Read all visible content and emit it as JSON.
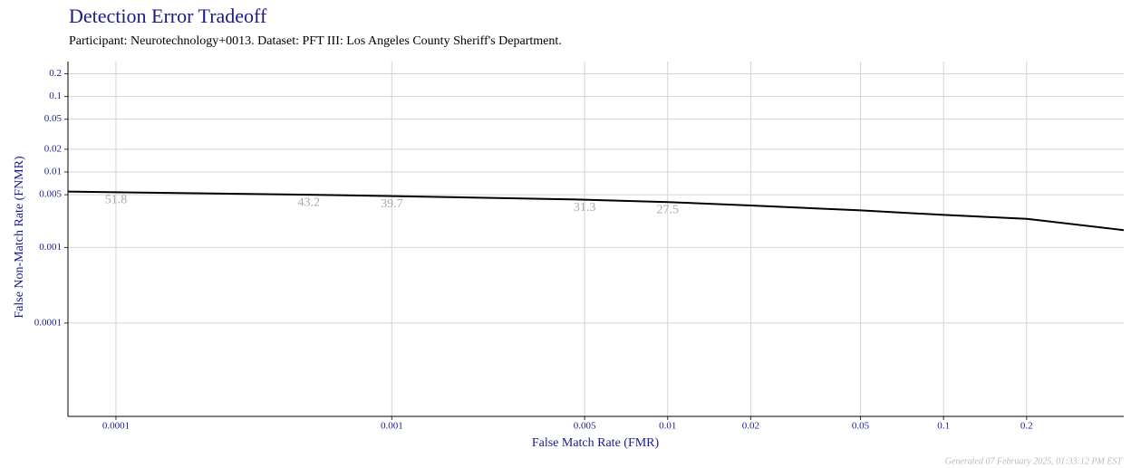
{
  "chart_data": {
    "type": "line",
    "title": "Detection Error Tradeoff",
    "subtitle": "Participant: Neurotechnology+0013. Dataset: PFT III: Los Angeles County Sheriff's Department.",
    "x_label": "False Match Rate (FMR)",
    "y_label": "False Non-Match Rate (FNMR)",
    "footer": "Generated 07 February 2025, 01:33:12 PM EST",
    "log_x": true,
    "log_y": true,
    "grid": true,
    "xlim": [
      6.7e-05,
      0.45
    ],
    "ylim": [
      5.8e-06,
      0.29
    ],
    "xticks": [
      0.0001,
      0.001,
      0.005,
      0.01,
      0.02,
      0.05,
      0.1,
      0.2
    ],
    "yticks": [
      0.0001,
      0.001,
      0.005,
      0.01,
      0.02,
      0.05,
      0.1,
      0.2
    ],
    "x": [
      6.7e-05,
      0.0001,
      0.0005,
      0.001,
      0.005,
      0.01,
      0.02,
      0.05,
      0.1,
      0.2,
      0.45
    ],
    "series": [
      {
        "color": "#000000",
        "values": [
          0.0055,
          0.0054,
          0.005,
          0.0048,
          0.0043,
          0.004,
          0.0036,
          0.0031,
          0.0027,
          0.0024,
          0.0017
        ]
      }
    ],
    "annotations": [
      {
        "text": "51.8",
        "x": 0.0001,
        "y": 0.0054
      },
      {
        "text": "43.2",
        "x": 0.0005,
        "y": 0.005
      },
      {
        "text": "39.7",
        "x": 0.001,
        "y": 0.0048
      },
      {
        "text": "31.3",
        "x": 0.005,
        "y": 0.0043
      },
      {
        "text": "27.5",
        "x": 0.01,
        "y": 0.004
      }
    ]
  }
}
